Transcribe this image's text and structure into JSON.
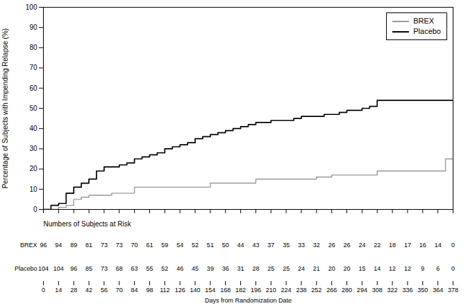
{
  "chart_data": {
    "type": "line",
    "line_style": "step",
    "xlabel": "Days from Randomization Date",
    "ylabel": "Percentage of Subjects with Impending Relapse (%)",
    "xlim": [
      0,
      378
    ],
    "ylim": [
      0,
      100
    ],
    "xticks": [
      0,
      14,
      28,
      42,
      56,
      70,
      84,
      98,
      112,
      126,
      140,
      154,
      168,
      182,
      196,
      210,
      224,
      238,
      252,
      266,
      280,
      294,
      308,
      322,
      336,
      350,
      364,
      378
    ],
    "yticks": [
      0,
      10,
      20,
      30,
      40,
      50,
      60,
      70,
      80,
      90,
      100
    ],
    "grid": false,
    "legend": "upper right",
    "series": [
      {
        "name": "BREX",
        "color": "#999999",
        "x": [
          0,
          14,
          21,
          28,
          35,
          42,
          49,
          56,
          63,
          70,
          77,
          84,
          98,
          112,
          126,
          140,
          154,
          168,
          182,
          196,
          210,
          224,
          238,
          252,
          266,
          280,
          294,
          308,
          322,
          336,
          350,
          364,
          371,
          378
        ],
        "values": [
          0,
          1,
          2,
          5,
          6,
          7,
          7,
          7,
          8,
          8,
          8,
          11,
          11,
          11,
          11,
          11,
          13,
          13,
          13,
          15,
          15,
          15,
          15,
          16,
          17,
          17,
          17,
          19,
          19,
          19,
          19,
          19,
          25,
          25
        ]
      },
      {
        "name": "Placebo",
        "color": "#000000",
        "x": [
          0,
          7,
          14,
          21,
          28,
          35,
          42,
          49,
          56,
          63,
          70,
          77,
          84,
          91,
          98,
          105,
          112,
          119,
          126,
          133,
          140,
          147,
          154,
          161,
          168,
          175,
          182,
          189,
          196,
          203,
          210,
          217,
          224,
          231,
          238,
          245,
          252,
          259,
          266,
          273,
          280,
          287,
          294,
          301,
          308,
          315,
          322,
          329,
          336,
          343,
          350,
          357,
          364,
          371,
          378
        ],
        "values": [
          0,
          2,
          3,
          8,
          11,
          13,
          15,
          19,
          21,
          21,
          22,
          23,
          25,
          26,
          27,
          28,
          30,
          31,
          32,
          33,
          35,
          36,
          37,
          38,
          39,
          40,
          41,
          42,
          43,
          43,
          44,
          44,
          44,
          45,
          46,
          46,
          46,
          47,
          47,
          48,
          49,
          49,
          50,
          51,
          54,
          54,
          54,
          54,
          54,
          54,
          54,
          54,
          54,
          54,
          54
        ]
      }
    ],
    "risk_table": {
      "label": "Numbers of Subjects at Risk",
      "days": [
        0,
        14,
        28,
        42,
        56,
        70,
        84,
        98,
        112,
        126,
        140,
        154,
        168,
        182,
        196,
        210,
        224,
        238,
        252,
        266,
        280,
        294,
        308,
        322,
        336,
        350,
        364,
        378
      ],
      "rows": [
        {
          "name": "BREX",
          "values": [
            96,
            94,
            89,
            81,
            73,
            73,
            70,
            61,
            59,
            54,
            52,
            51,
            50,
            44,
            43,
            37,
            35,
            33,
            32,
            26,
            26,
            24,
            22,
            18,
            17,
            16,
            14,
            0
          ]
        },
        {
          "name": "Placebo",
          "values": [
            104,
            104,
            96,
            85,
            73,
            68,
            63,
            55,
            52,
            46,
            45,
            39,
            36,
            31,
            28,
            25,
            25,
            24,
            21,
            20,
            20,
            15,
            14,
            12,
            12,
            9,
            6,
            0
          ]
        }
      ]
    }
  }
}
